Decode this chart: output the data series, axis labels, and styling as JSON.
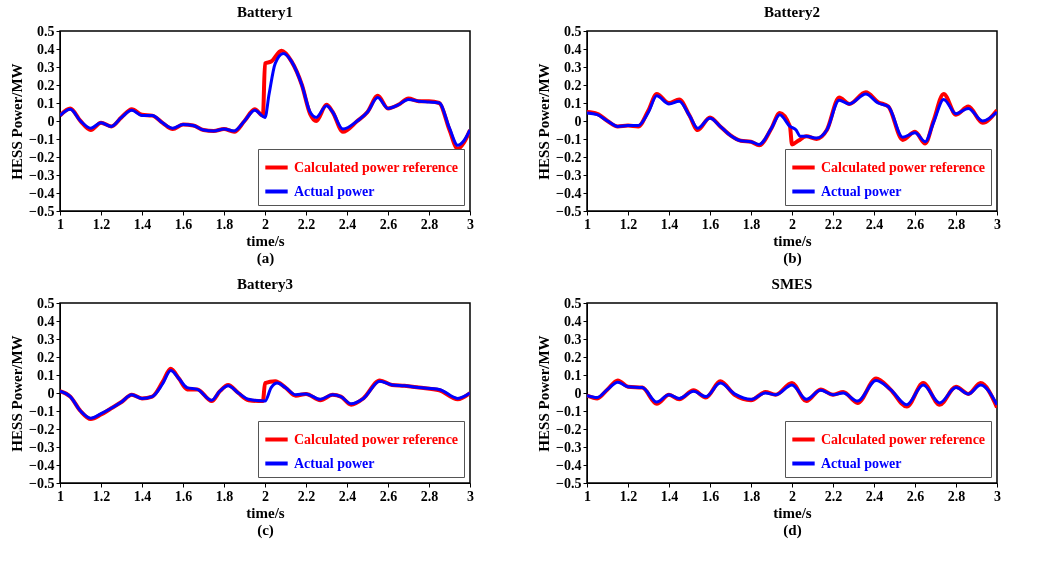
{
  "chart_data": [
    {
      "type": "line",
      "title": "Battery1",
      "xlabel": "time/s",
      "ylabel": "HESS Power/MW",
      "annotations": [
        "(a)"
      ],
      "xlim": [
        1,
        3
      ],
      "xticks": [
        1,
        1.2,
        1.4,
        1.6,
        1.8,
        2,
        2.2,
        2.4,
        2.6,
        2.8,
        3
      ],
      "ylim": [
        -0.5,
        0.5
      ],
      "yticks": [
        -0.5,
        -0.4,
        -0.3,
        -0.2,
        -0.1,
        0,
        0.1,
        0.2,
        0.3,
        0.4,
        0.5
      ],
      "grid": false,
      "legend": "bottom right",
      "marker": "none",
      "line_style": "solid",
      "series": [
        {
          "name": "Calculated power reference",
          "color": "#ff0000",
          "x": [
            1,
            1.05,
            1.1,
            1.15,
            1.2,
            1.25,
            1.3,
            1.35,
            1.4,
            1.45,
            1.5,
            1.55,
            1.6,
            1.65,
            1.7,
            1.75,
            1.8,
            1.85,
            1.9,
            1.95,
            1.99,
            2.0,
            2.03,
            2.08,
            2.13,
            2.18,
            2.22,
            2.25,
            2.3,
            2.33,
            2.38,
            2.45,
            2.5,
            2.55,
            2.6,
            2.65,
            2.7,
            2.75,
            2.8,
            2.85,
            2.9,
            2.94,
            2.97,
            3.0
          ],
          "values": [
            0.03,
            0.07,
            0.0,
            -0.05,
            -0.01,
            -0.03,
            0.02,
            0.065,
            0.035,
            0.03,
            -0.01,
            -0.045,
            -0.02,
            -0.025,
            -0.05,
            -0.055,
            -0.045,
            -0.06,
            0.0,
            0.065,
            0.03,
            0.32,
            0.33,
            0.39,
            0.33,
            0.2,
            0.04,
            0.0,
            0.09,
            0.05,
            -0.06,
            0.0,
            0.05,
            0.14,
            0.07,
            0.09,
            0.125,
            0.11,
            0.11,
            0.1,
            -0.05,
            -0.155,
            -0.12,
            -0.05
          ]
        },
        {
          "name": "Actual power",
          "color": "#0000ff",
          "x": [
            1,
            1.05,
            1.1,
            1.15,
            1.2,
            1.25,
            1.3,
            1.35,
            1.4,
            1.45,
            1.5,
            1.55,
            1.6,
            1.65,
            1.7,
            1.75,
            1.8,
            1.85,
            1.9,
            1.95,
            2.0,
            2.02,
            2.05,
            2.09,
            2.13,
            2.18,
            2.22,
            2.25,
            2.3,
            2.33,
            2.38,
            2.45,
            2.5,
            2.55,
            2.6,
            2.65,
            2.7,
            2.75,
            2.8,
            2.85,
            2.9,
            2.94,
            2.97,
            3.0
          ],
          "values": [
            0.03,
            0.065,
            0.0,
            -0.04,
            -0.01,
            -0.03,
            0.02,
            0.06,
            0.03,
            0.03,
            -0.01,
            -0.04,
            -0.02,
            -0.025,
            -0.05,
            -0.055,
            -0.045,
            -0.055,
            0.0,
            0.06,
            0.02,
            0.15,
            0.32,
            0.375,
            0.33,
            0.2,
            0.05,
            0.02,
            0.085,
            0.05,
            -0.045,
            0.0,
            0.05,
            0.13,
            0.07,
            0.09,
            0.12,
            0.11,
            0.105,
            0.1,
            -0.04,
            -0.135,
            -0.11,
            -0.05
          ]
        }
      ]
    },
    {
      "type": "line",
      "title": "Battery2",
      "xlabel": "time/s",
      "ylabel": "HESS Power/MW",
      "annotations": [
        "(b)"
      ],
      "xlim": [
        1,
        3
      ],
      "xticks": [
        1,
        1.2,
        1.4,
        1.6,
        1.8,
        2,
        2.2,
        2.4,
        2.6,
        2.8,
        3
      ],
      "ylim": [
        -0.5,
        0.5
      ],
      "yticks": [
        -0.5,
        -0.4,
        -0.3,
        -0.2,
        -0.1,
        0,
        0.1,
        0.2,
        0.3,
        0.4,
        0.5
      ],
      "grid": false,
      "legend": "bottom right",
      "marker": "none",
      "line_style": "solid",
      "series": [
        {
          "name": "Calculated power reference",
          "color": "#ff0000",
          "x": [
            1,
            1.05,
            1.1,
            1.15,
            1.2,
            1.25,
            1.3,
            1.34,
            1.4,
            1.45,
            1.5,
            1.54,
            1.6,
            1.65,
            1.7,
            1.75,
            1.8,
            1.84,
            1.9,
            1.94,
            1.99,
            2.0,
            2.03,
            2.07,
            2.12,
            2.17,
            2.23,
            2.28,
            2.36,
            2.42,
            2.47,
            2.54,
            2.6,
            2.65,
            2.69,
            2.74,
            2.8,
            2.86,
            2.93,
            3.0
          ],
          "values": [
            0.05,
            0.04,
            0.0,
            -0.03,
            -0.025,
            -0.03,
            0.06,
            0.15,
            0.1,
            0.12,
            0.03,
            -0.05,
            0.02,
            -0.03,
            -0.08,
            -0.11,
            -0.115,
            -0.135,
            -0.04,
            0.045,
            -0.03,
            -0.13,
            -0.11,
            -0.085,
            -0.1,
            -0.05,
            0.13,
            0.095,
            0.16,
            0.105,
            0.08,
            -0.105,
            -0.06,
            -0.125,
            0.0,
            0.15,
            0.035,
            0.08,
            -0.01,
            0.06
          ]
        },
        {
          "name": "Actual power",
          "color": "#0000ff",
          "x": [
            1,
            1.05,
            1.1,
            1.15,
            1.2,
            1.25,
            1.3,
            1.34,
            1.4,
            1.45,
            1.5,
            1.54,
            1.6,
            1.65,
            1.7,
            1.75,
            1.8,
            1.84,
            1.9,
            1.94,
            1.99,
            2.02,
            2.04,
            2.07,
            2.12,
            2.17,
            2.23,
            2.28,
            2.36,
            2.42,
            2.47,
            2.54,
            2.6,
            2.65,
            2.69,
            2.74,
            2.8,
            2.86,
            2.93,
            3.0
          ],
          "values": [
            0.045,
            0.035,
            0.0,
            -0.03,
            -0.025,
            -0.025,
            0.05,
            0.14,
            0.095,
            0.11,
            0.03,
            -0.04,
            0.015,
            -0.03,
            -0.08,
            -0.11,
            -0.115,
            -0.13,
            -0.04,
            0.035,
            -0.03,
            -0.05,
            -0.085,
            -0.085,
            -0.095,
            -0.05,
            0.115,
            0.095,
            0.15,
            0.1,
            0.08,
            -0.09,
            -0.065,
            -0.115,
            -0.01,
            0.12,
            0.04,
            0.07,
            0.0,
            0.05
          ]
        }
      ]
    },
    {
      "type": "line",
      "title": "Battery3",
      "xlabel": "time/s",
      "ylabel": "HESS Power/MW",
      "annotations": [
        "(c)"
      ],
      "xlim": [
        1,
        3
      ],
      "xticks": [
        1,
        1.2,
        1.4,
        1.6,
        1.8,
        2,
        2.2,
        2.4,
        2.6,
        2.8,
        3
      ],
      "ylim": [
        -0.5,
        0.5
      ],
      "yticks": [
        -0.5,
        -0.4,
        -0.3,
        -0.2,
        -0.1,
        0,
        0.1,
        0.2,
        0.3,
        0.4,
        0.5
      ],
      "grid": false,
      "legend": "bottom right",
      "marker": "none",
      "line_style": "solid",
      "series": [
        {
          "name": "Calculated power reference",
          "color": "#ff0000",
          "x": [
            1,
            1.05,
            1.1,
            1.15,
            1.2,
            1.25,
            1.3,
            1.35,
            1.4,
            1.45,
            1.5,
            1.54,
            1.58,
            1.62,
            1.67,
            1.74,
            1.78,
            1.82,
            1.87,
            1.92,
            1.99,
            2.0,
            2.05,
            2.1,
            2.15,
            2.2,
            2.27,
            2.33,
            2.37,
            2.42,
            2.48,
            2.56,
            2.62,
            2.68,
            2.75,
            2.85,
            2.94,
            3.0
          ],
          "values": [
            0.01,
            -0.02,
            -0.1,
            -0.145,
            -0.12,
            -0.085,
            -0.05,
            -0.01,
            -0.03,
            -0.02,
            0.06,
            0.135,
            0.08,
            0.02,
            0.02,
            -0.045,
            0.01,
            0.045,
            0.0,
            -0.04,
            -0.045,
            0.055,
            0.065,
            0.03,
            -0.015,
            -0.005,
            -0.04,
            -0.01,
            -0.02,
            -0.065,
            -0.03,
            0.07,
            0.045,
            0.04,
            0.03,
            0.015,
            -0.035,
            0.0
          ]
        },
        {
          "name": "Actual power",
          "color": "#0000ff",
          "x": [
            1,
            1.05,
            1.1,
            1.15,
            1.2,
            1.25,
            1.3,
            1.35,
            1.4,
            1.45,
            1.5,
            1.54,
            1.58,
            1.62,
            1.67,
            1.74,
            1.78,
            1.82,
            1.87,
            1.92,
            2.0,
            2.03,
            2.06,
            2.1,
            2.15,
            2.2,
            2.27,
            2.33,
            2.37,
            2.42,
            2.48,
            2.56,
            2.62,
            2.68,
            2.75,
            2.85,
            2.94,
            3.0
          ],
          "values": [
            0.01,
            -0.02,
            -0.1,
            -0.14,
            -0.115,
            -0.085,
            -0.05,
            -0.01,
            -0.03,
            -0.02,
            0.05,
            0.125,
            0.08,
            0.03,
            0.02,
            -0.04,
            0.01,
            0.04,
            0.0,
            -0.035,
            -0.045,
            0.03,
            0.055,
            0.03,
            -0.01,
            -0.005,
            -0.035,
            -0.01,
            -0.02,
            -0.06,
            -0.03,
            0.065,
            0.045,
            0.04,
            0.03,
            0.02,
            -0.03,
            0.0
          ]
        }
      ]
    },
    {
      "type": "line",
      "title": "SMES",
      "xlabel": "time/s",
      "ylabel": "HESS Power/MW",
      "annotations": [
        "(d)"
      ],
      "xlim": [
        1,
        3
      ],
      "xticks": [
        1,
        1.2,
        1.4,
        1.6,
        1.8,
        2,
        2.2,
        2.4,
        2.6,
        2.8,
        3
      ],
      "ylim": [
        -0.5,
        0.5
      ],
      "yticks": [
        -0.5,
        -0.4,
        -0.3,
        -0.2,
        -0.1,
        0,
        0.1,
        0.2,
        0.3,
        0.4,
        0.5
      ],
      "grid": false,
      "legend": "bottom right",
      "marker": "none",
      "line_style": "solid",
      "series": [
        {
          "name": "Calculated power reference",
          "color": "#ff0000",
          "x": [
            1,
            1.05,
            1.1,
            1.15,
            1.2,
            1.27,
            1.34,
            1.4,
            1.45,
            1.52,
            1.58,
            1.65,
            1.72,
            1.8,
            1.87,
            1.92,
            2.0,
            2.07,
            2.14,
            2.2,
            2.25,
            2.32,
            2.41,
            2.48,
            2.56,
            2.64,
            2.72,
            2.8,
            2.86,
            2.92,
            3.0
          ],
          "values": [
            -0.015,
            -0.03,
            0.02,
            0.07,
            0.035,
            0.03,
            -0.06,
            -0.01,
            -0.035,
            0.015,
            -0.025,
            0.065,
            -0.01,
            -0.04,
            0.005,
            -0.01,
            0.055,
            -0.045,
            0.02,
            -0.01,
            0.005,
            -0.055,
            0.08,
            0.02,
            -0.075,
            0.055,
            -0.065,
            0.035,
            -0.005,
            0.055,
            -0.08
          ]
        },
        {
          "name": "Actual power",
          "color": "#0000ff",
          "x": [
            1,
            1.05,
            1.1,
            1.15,
            1.2,
            1.27,
            1.34,
            1.4,
            1.45,
            1.52,
            1.58,
            1.65,
            1.72,
            1.8,
            1.87,
            1.92,
            2.0,
            2.07,
            2.14,
            2.2,
            2.25,
            2.32,
            2.41,
            2.48,
            2.56,
            2.64,
            2.72,
            2.8,
            2.86,
            2.92,
            3.0
          ],
          "values": [
            -0.015,
            -0.025,
            0.02,
            0.06,
            0.035,
            0.03,
            -0.05,
            -0.01,
            -0.03,
            0.01,
            -0.02,
            0.055,
            -0.005,
            -0.035,
            0.0,
            -0.01,
            0.045,
            -0.035,
            0.015,
            -0.01,
            0.0,
            -0.045,
            0.07,
            0.02,
            -0.065,
            0.045,
            -0.055,
            0.03,
            -0.005,
            0.045,
            -0.065
          ]
        }
      ]
    }
  ]
}
